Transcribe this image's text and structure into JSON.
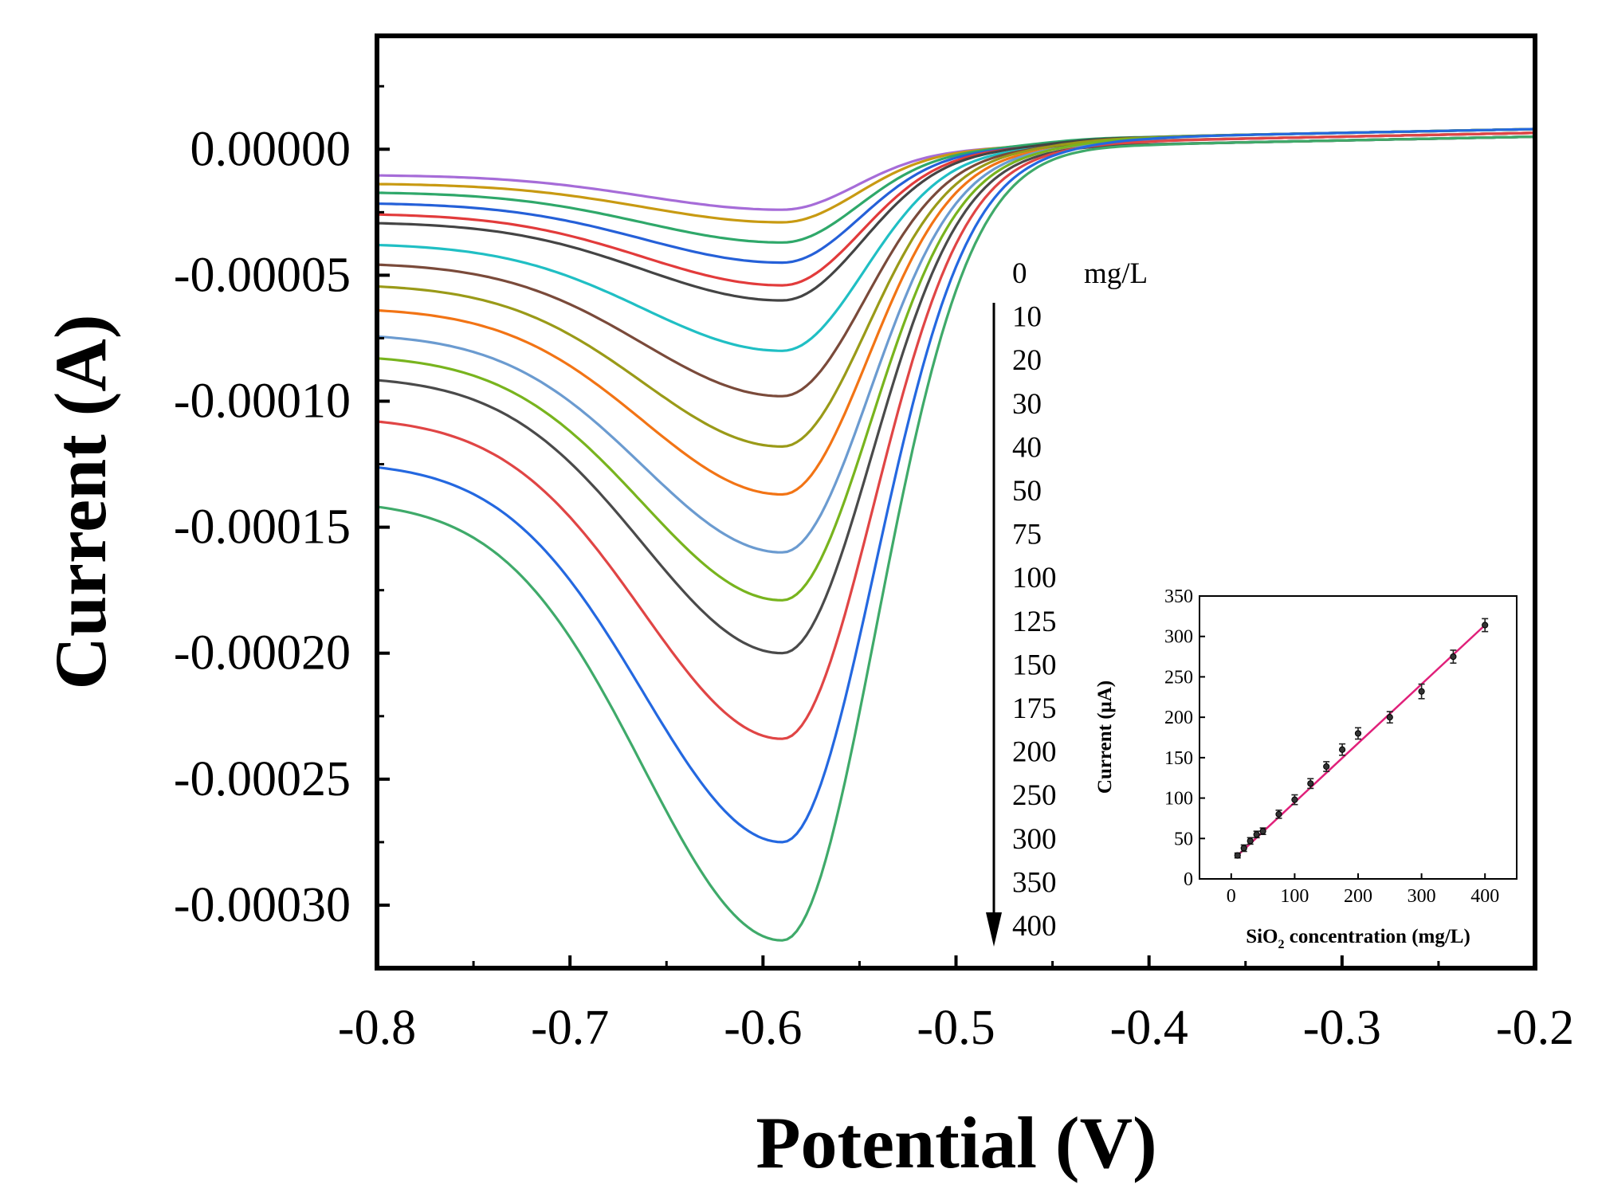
{
  "chart_data": [
    {
      "type": "line",
      "xlabel": "Potential (V)",
      "ylabel": "Current (A)",
      "xlim": [
        -0.8,
        -0.2
      ],
      "ylim": [
        -0.000325,
        4.5e-05
      ],
      "xticks": [
        "-0.8",
        "-0.7",
        "-0.6",
        "-0.5",
        "-0.4",
        "-0.3",
        "-0.2"
      ],
      "yticks": [
        "0.00000",
        "-0.00005",
        "-0.00010",
        "-0.00015",
        "-0.00020",
        "-0.00025",
        "-0.00030"
      ],
      "grid": false,
      "legend_placement": "right of curves, vertical list with downward arrow",
      "legend_unit": "mg/L",
      "peak_potential": -0.59,
      "series": [
        {
          "name": "0",
          "color": "#a66cd8",
          "start": -1.2e-05,
          "peak": -2.4e-05
        },
        {
          "name": "10",
          "color": "#c89a12",
          "start": -1.6e-05,
          "peak": -2.9e-05
        },
        {
          "name": "20",
          "color": "#2fa86a",
          "start": -2e-05,
          "peak": -3.7e-05
        },
        {
          "name": "30",
          "color": "#2560d8",
          "start": -2.5e-05,
          "peak": -4.5e-05
        },
        {
          "name": "40",
          "color": "#e23b3b",
          "start": -3e-05,
          "peak": -5.4e-05
        },
        {
          "name": "50",
          "color": "#444444",
          "start": -3.4e-05,
          "peak": -6e-05
        },
        {
          "name": "75",
          "color": "#20bfc4",
          "start": -4.4e-05,
          "peak": -8e-05
        },
        {
          "name": "100",
          "color": "#7a4a3a",
          "start": -5.3e-05,
          "peak": -9.8e-05
        },
        {
          "name": "125",
          "color": "#9a9a18",
          "start": -6.3e-05,
          "peak": -0.000118
        },
        {
          "name": "150",
          "color": "#f27415",
          "start": -7.4e-05,
          "peak": -0.000137
        },
        {
          "name": "175",
          "color": "#6b9bd0",
          "start": -8.6e-05,
          "peak": -0.00016
        },
        {
          "name": "200",
          "color": "#78b41e",
          "start": -9.6e-05,
          "peak": -0.000179
        },
        {
          "name": "250",
          "color": "#4a4a4a",
          "start": -0.000106,
          "peak": -0.0002
        },
        {
          "name": "300",
          "color": "#e04545",
          "start": -0.000125,
          "peak": -0.000234
        },
        {
          "name": "350",
          "color": "#2468e0",
          "start": -0.000146,
          "peak": -0.000275
        },
        {
          "name": "400",
          "color": "#3faa6a",
          "start": -0.000164,
          "peak": -0.000314
        }
      ]
    },
    {
      "type": "scatter",
      "xlabel_main": "SiO",
      "xlabel_sub": "2",
      "xlabel_rest": " concentration (mg/L)",
      "ylabel": "Current (μA)",
      "xlim": [
        -50,
        450
      ],
      "ylim": [
        0,
        350
      ],
      "xticks": [
        "0",
        "100",
        "200",
        "300",
        "400"
      ],
      "yticks": [
        "0",
        "50",
        "100",
        "150",
        "200",
        "250",
        "300",
        "350"
      ],
      "fit_line_color": "#e0207a",
      "fit_line": {
        "x": [
          10,
          400
        ],
        "y": [
          29,
          314
        ]
      },
      "points": [
        {
          "x": 10,
          "y": 29,
          "err": 3
        },
        {
          "x": 20,
          "y": 38,
          "err": 4
        },
        {
          "x": 30,
          "y": 47,
          "err": 4
        },
        {
          "x": 40,
          "y": 55,
          "err": 4
        },
        {
          "x": 50,
          "y": 59,
          "err": 4
        },
        {
          "x": 75,
          "y": 80,
          "err": 5
        },
        {
          "x": 100,
          "y": 98,
          "err": 6
        },
        {
          "x": 125,
          "y": 118,
          "err": 6
        },
        {
          "x": 150,
          "y": 139,
          "err": 6
        },
        {
          "x": 175,
          "y": 160,
          "err": 7
        },
        {
          "x": 200,
          "y": 180,
          "err": 7
        },
        {
          "x": 250,
          "y": 200,
          "err": 7
        },
        {
          "x": 300,
          "y": 232,
          "err": 9
        },
        {
          "x": 350,
          "y": 275,
          "err": 8
        },
        {
          "x": 400,
          "y": 314,
          "err": 8
        }
      ]
    }
  ]
}
